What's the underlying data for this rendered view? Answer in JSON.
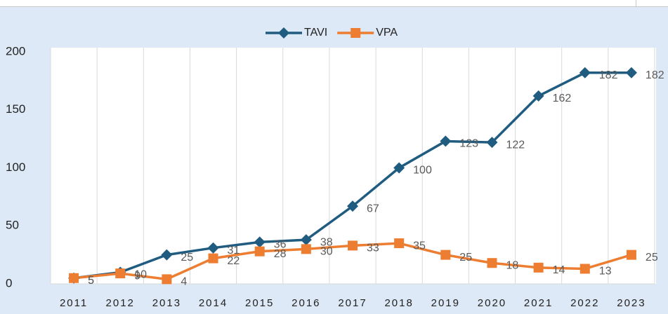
{
  "chart_data": {
    "type": "line",
    "categories": [
      "2011",
      "2012",
      "2013",
      "2014",
      "2015",
      "2016",
      "2017",
      "2018",
      "2019",
      "2020",
      "2021",
      "2022",
      "2023"
    ],
    "series": [
      {
        "name": "TAVI",
        "color": "#1f5c80",
        "marker": "diamond",
        "values": [
          5,
          10,
          25,
          31,
          36,
          38,
          67,
          100,
          123,
          122,
          162,
          182,
          182
        ]
      },
      {
        "name": "VPA",
        "color": "#ed7d31",
        "marker": "square",
        "values": [
          5,
          9,
          4,
          22,
          28,
          30,
          33,
          35,
          25,
          18,
          14,
          13,
          25
        ]
      }
    ],
    "ylim": [
      0,
      200
    ],
    "yticks": [
      0,
      50,
      100,
      150,
      200
    ],
    "legend": "top"
  }
}
